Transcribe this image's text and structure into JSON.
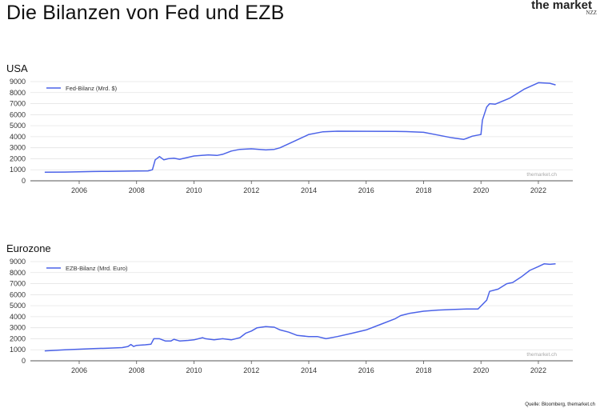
{
  "title": "Die Bilanzen von Fed und EZB",
  "brand": {
    "name": "the market",
    "sub": "NZZ"
  },
  "source": "Quelle: Bloomberg, themarket.ch",
  "colors": {
    "line": "#4c63e8",
    "grid": "#e4e4e4",
    "axis": "#555555",
    "text": "#333333",
    "watermark": "#aaaaaa"
  },
  "chart_data": [
    {
      "type": "line",
      "region": "USA",
      "xlim": [
        2004.3,
        2023.2
      ],
      "ylim": [
        0,
        9000
      ],
      "yticks": [
        0,
        1000,
        2000,
        3000,
        4000,
        5000,
        6000,
        7000,
        8000,
        9000
      ],
      "xticks": [
        2006,
        2008,
        2010,
        2012,
        2014,
        2016,
        2018,
        2020,
        2022
      ],
      "grid": "horizontal",
      "legend_position": "top-left",
      "watermark": "themarket.ch",
      "series": [
        {
          "name": "Fed-Bilanz (Mrd. $)",
          "x": [
            2004.8,
            2005.5,
            2006.0,
            2006.5,
            2007.0,
            2007.5,
            2008.0,
            2008.4,
            2008.55,
            2008.65,
            2008.8,
            2008.95,
            2009.1,
            2009.3,
            2009.5,
            2010.0,
            2010.5,
            2010.8,
            2011.0,
            2011.3,
            2011.6,
            2012.0,
            2012.5,
            2012.8,
            2013.0,
            2013.5,
            2014.0,
            2014.5,
            2015.0,
            2016.0,
            2017.0,
            2017.5,
            2018.0,
            2018.5,
            2019.0,
            2019.4,
            2019.5,
            2019.7,
            2019.9,
            2020.0,
            2020.05,
            2020.2,
            2020.3,
            2020.5,
            2021.0,
            2021.5,
            2022.0,
            2022.4,
            2022.6
          ],
          "y": [
            780,
            790,
            810,
            840,
            860,
            870,
            890,
            900,
            1000,
            1900,
            2200,
            1900,
            2000,
            2050,
            1950,
            2250,
            2350,
            2300,
            2400,
            2700,
            2850,
            2900,
            2800,
            2850,
            3000,
            3600,
            4200,
            4450,
            4500,
            4490,
            4480,
            4460,
            4400,
            4150,
            3900,
            3760,
            3850,
            4050,
            4150,
            4200,
            5500,
            6700,
            7000,
            6950,
            7500,
            8300,
            8900,
            8850,
            8700
          ]
        }
      ]
    },
    {
      "type": "line",
      "region": "Eurozone",
      "xlim": [
        2004.3,
        2023.2
      ],
      "ylim": [
        0,
        9000
      ],
      "yticks": [
        0,
        1000,
        2000,
        3000,
        4000,
        5000,
        6000,
        7000,
        8000,
        9000
      ],
      "xticks": [
        2006,
        2008,
        2010,
        2012,
        2014,
        2016,
        2018,
        2020,
        2022
      ],
      "grid": "horizontal",
      "legend_position": "top-left",
      "watermark": "themarket.ch",
      "series": [
        {
          "name": "EZB-Bilanz (Mrd. Euro)",
          "x": [
            2004.8,
            2005.5,
            2006.0,
            2006.5,
            2007.0,
            2007.5,
            2007.7,
            2007.8,
            2007.9,
            2008.0,
            2008.3,
            2008.5,
            2008.6,
            2008.8,
            2009.0,
            2009.2,
            2009.3,
            2009.5,
            2009.8,
            2010.0,
            2010.3,
            2010.4,
            2010.7,
            2011.0,
            2011.3,
            2011.6,
            2011.8,
            2012.0,
            2012.2,
            2012.5,
            2012.8,
            2013.0,
            2013.3,
            2013.6,
            2014.0,
            2014.3,
            2014.6,
            2015.0,
            2015.5,
            2016.0,
            2016.5,
            2017.0,
            2017.2,
            2017.5,
            2018.0,
            2018.5,
            2019.0,
            2019.5,
            2019.9,
            2020.2,
            2020.3,
            2020.6,
            2020.9,
            2021.1,
            2021.4,
            2021.7,
            2022.0,
            2022.2,
            2022.4,
            2022.6
          ],
          "y": [
            900,
            1000,
            1050,
            1100,
            1150,
            1200,
            1300,
            1480,
            1300,
            1400,
            1450,
            1500,
            2000,
            2000,
            1800,
            1800,
            1950,
            1800,
            1850,
            1900,
            2100,
            2000,
            1900,
            2000,
            1900,
            2100,
            2500,
            2700,
            3000,
            3100,
            3050,
            2800,
            2600,
            2300,
            2200,
            2200,
            2000,
            2200,
            2500,
            2800,
            3300,
            3800,
            4100,
            4300,
            4500,
            4600,
            4650,
            4700,
            4700,
            5500,
            6300,
            6500,
            7000,
            7100,
            7600,
            8200,
            8550,
            8800,
            8750,
            8800
          ]
        }
      ]
    }
  ]
}
